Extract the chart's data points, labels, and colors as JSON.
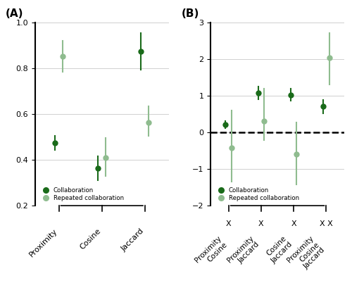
{
  "panel_A": {
    "categories": [
      "Proximity",
      "Cosine",
      "Jaccard"
    ],
    "collab_mean": [
      0.475,
      0.365,
      0.875
    ],
    "collab_lo": [
      0.445,
      0.31,
      0.795
    ],
    "collab_hi": [
      0.505,
      0.415,
      0.955
    ],
    "repeat_mean": [
      0.855,
      0.41,
      0.565
    ],
    "repeat_lo": [
      0.785,
      0.33,
      0.505
    ],
    "repeat_hi": [
      0.92,
      0.495,
      0.635
    ],
    "ylim": [
      0.2,
      1.0
    ],
    "yticks": [
      0.2,
      0.4,
      0.6,
      0.8,
      1.0
    ]
  },
  "panel_B": {
    "categories": [
      "Proximity\nCosine",
      "Proximity\nJaccard",
      "Cosine\nJaccard",
      "Proximity\nCosine\nJaccard"
    ],
    "x_labels_top": [
      "X",
      "X",
      "X",
      "X X"
    ],
    "collab_mean": [
      0.21,
      1.08,
      1.03,
      0.71
    ],
    "collab_lo": [
      0.12,
      0.92,
      0.88,
      0.52
    ],
    "collab_hi": [
      0.31,
      1.25,
      1.19,
      0.9
    ],
    "repeat_mean": [
      -0.42,
      0.32,
      -0.6,
      2.05
    ],
    "repeat_lo": [
      -1.35,
      -0.2,
      -1.42,
      1.32
    ],
    "repeat_hi": [
      0.6,
      1.2,
      0.27,
      2.72
    ],
    "ylim": [
      -2.0,
      3.0
    ],
    "yticks": [
      -2,
      -1,
      0,
      1,
      2,
      3
    ]
  },
  "color_collab": "#1a6b1a",
  "color_repeat": "#8fbc8f",
  "dot_size": 6,
  "linewidth": 1.5
}
